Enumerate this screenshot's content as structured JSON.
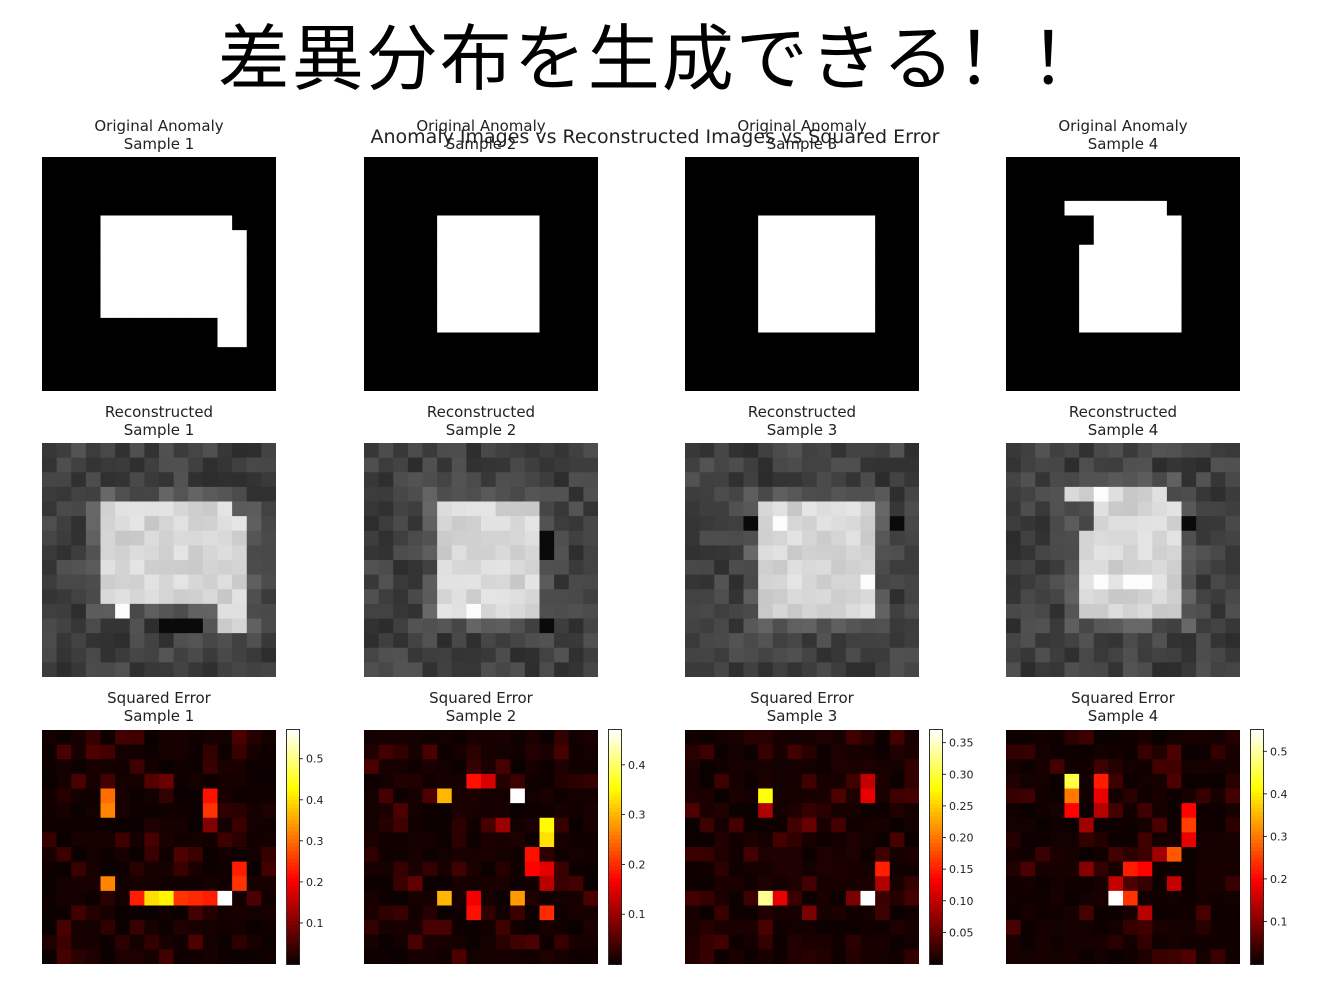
{
  "headline": "差異分布を生成できる！！",
  "chart_data": {
    "type": "heatmap",
    "title": "Anomaly Images vs Reconstructed Images vs Squared Error",
    "grid_size": 16,
    "colors": {
      "original_cmap": "gray",
      "reconstructed_cmap": "gray",
      "error_cmap": "hot"
    },
    "rows": [
      {
        "name": "original",
        "panels": [
          {
            "title_line1": "Original Anomaly",
            "title_line2": "Sample 1",
            "shape": {
              "base": [
                4,
                11,
                4,
                12
              ],
              "extra": [
                [
                  5,
                  12,
                  12,
                  13
                ]
              ],
              "cut": [
                [
                  11,
                  12,
                  4,
                  11
                ]
              ]
            }
          },
          {
            "title_line1": "Original Anomaly",
            "title_line2": "Sample 2",
            "shape": {
              "base": [
                4,
                11,
                5,
                11
              ],
              "extra": [],
              "cut": []
            }
          },
          {
            "title_line1": "Original Anomaly",
            "title_line2": "Sample 3",
            "shape": {
              "base": [
                4,
                11,
                5,
                12
              ],
              "extra": [],
              "cut": []
            }
          },
          {
            "title_line1": "Original Anomaly",
            "title_line2": "Sample 4",
            "shape": {
              "base": [
                4,
                11,
                5,
                11
              ],
              "extra": [
                [
                  3,
                  4,
                  4,
                  10
                ]
              ],
              "cut": [
                [
                  4,
                  5,
                  4,
                  5
                ]
              ]
            }
          }
        ]
      },
      {
        "name": "reconstructed",
        "panels": [
          {
            "title_line1": "Reconstructed",
            "title_line2": "Sample 1",
            "bright": [
              [
                11,
                5
              ]
            ],
            "dark": [
              [
                12,
                9
              ],
              [
                12,
                10
              ],
              [
                12,
                8
              ]
            ]
          },
          {
            "title_line1": "Reconstructed",
            "title_line2": "Sample 2",
            "bright": [
              [
                11,
                7
              ]
            ],
            "dark": [
              [
                6,
                12
              ],
              [
                7,
                12
              ],
              [
                12,
                12
              ]
            ]
          },
          {
            "title_line1": "Reconstructed",
            "title_line2": "Sample 3",
            "bright": [
              [
                5,
                6
              ],
              [
                9,
                12
              ]
            ],
            "dark": [
              [
                5,
                14
              ],
              [
                5,
                4
              ]
            ]
          },
          {
            "title_line1": "Reconstructed",
            "title_line2": "Sample 4",
            "bright": [
              [
                3,
                6
              ],
              [
                9,
                6
              ],
              [
                9,
                8
              ],
              [
                9,
                9
              ]
            ],
            "dark": [
              [
                5,
                12
              ]
            ]
          }
        ]
      },
      {
        "name": "squared_error",
        "panels": [
          {
            "title_line1": "Squared Error",
            "title_line2": "Sample 1",
            "vmax": 0.57,
            "ticks": [
              "0.1",
              "0.2",
              "0.3",
              "0.4",
              "0.5"
            ],
            "hot": [
              [
                4,
                4,
                0.3
              ],
              [
                5,
                4,
                0.32
              ],
              [
                4,
                11,
                0.22
              ],
              [
                5,
                11,
                0.25
              ],
              [
                9,
                13,
                0.23
              ],
              [
                10,
                13,
                0.25
              ],
              [
                10,
                4,
                0.32
              ],
              [
                11,
                6,
                0.23
              ],
              [
                11,
                7,
                0.4
              ],
              [
                11,
                8,
                0.42
              ],
              [
                11,
                9,
                0.25
              ],
              [
                11,
                10,
                0.24
              ],
              [
                11,
                11,
                0.23
              ],
              [
                11,
                12,
                0.57
              ],
              [
                6,
                11,
                0.1
              ],
              [
                3,
                7,
                0.06
              ],
              [
                3,
                8,
                0.08
              ]
            ]
          },
          {
            "title_line1": "Squared Error",
            "title_line2": "Sample 2",
            "vmax": 0.47,
            "ticks": [
              "0.1",
              "0.2",
              "0.3",
              "0.4"
            ],
            "hot": [
              [
                4,
                5,
                0.3
              ],
              [
                4,
                10,
                0.47
              ],
              [
                3,
                7,
                0.18
              ],
              [
                3,
                8,
                0.14
              ],
              [
                6,
                12,
                0.35
              ],
              [
                7,
                12,
                0.33
              ],
              [
                8,
                11,
                0.18
              ],
              [
                9,
                11,
                0.17
              ],
              [
                9,
                12,
                0.15
              ],
              [
                10,
                12,
                0.12
              ],
              [
                11,
                5,
                0.3
              ],
              [
                11,
                10,
                0.28
              ],
              [
                11,
                7,
                0.16
              ],
              [
                12,
                7,
                0.18
              ],
              [
                12,
                12,
                0.2
              ],
              [
                6,
                9,
                0.1
              ],
              [
                10,
                3,
                0.06
              ]
            ]
          },
          {
            "title_line1": "Squared Error",
            "title_line2": "Sample 3",
            "vmax": 0.37,
            "ticks": [
              "0.05",
              "0.10",
              "0.15",
              "0.20",
              "0.25",
              "0.30",
              "0.35"
            ],
            "hot": [
              [
                4,
                5,
                0.28
              ],
              [
                5,
                5,
                0.09
              ],
              [
                11,
                5,
                0.33
              ],
              [
                11,
                6,
                0.12
              ],
              [
                11,
                12,
                0.37
              ],
              [
                3,
                12,
                0.1
              ],
              [
                4,
                12,
                0.12
              ],
              [
                9,
                13,
                0.15
              ],
              [
                10,
                13,
                0.09
              ],
              [
                12,
                8,
                0.06
              ],
              [
                6,
                8,
                0.05
              ],
              [
                11,
                11,
                0.06
              ]
            ]
          },
          {
            "title_line1": "Squared Error",
            "title_line2": "Sample 4",
            "vmax": 0.55,
            "ticks": [
              "0.1",
              "0.2",
              "0.3",
              "0.4",
              "0.5"
            ],
            "hot": [
              [
                3,
                4,
                0.45
              ],
              [
                4,
                4,
                0.3
              ],
              [
                5,
                4,
                0.2
              ],
              [
                3,
                6,
                0.22
              ],
              [
                4,
                6,
                0.18
              ],
              [
                5,
                6,
                0.14
              ],
              [
                6,
                5,
                0.12
              ],
              [
                5,
                12,
                0.2
              ],
              [
                6,
                12,
                0.25
              ],
              [
                7,
                12,
                0.18
              ],
              [
                8,
                11,
                0.27
              ],
              [
                9,
                8,
                0.22
              ],
              [
                9,
                9,
                0.2
              ],
              [
                10,
                7,
                0.15
              ],
              [
                11,
                7,
                0.55
              ],
              [
                11,
                8,
                0.24
              ],
              [
                12,
                9,
                0.14
              ],
              [
                10,
                11,
                0.15
              ],
              [
                8,
                10,
                0.12
              ],
              [
                9,
                5,
                0.1
              ]
            ]
          }
        ]
      }
    ]
  }
}
